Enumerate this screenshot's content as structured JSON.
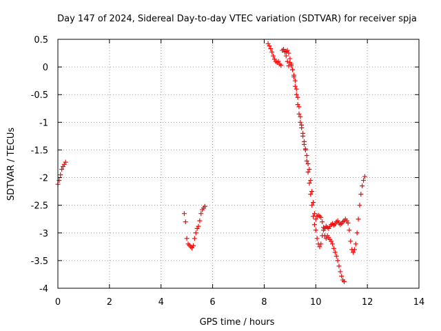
{
  "chart_data": {
    "type": "scatter",
    "title": "Day 147 of 2024, Sidereal Day-to-day VTEC variation (SDTVAR) for receiver spja",
    "xlabel": "GPS time / hours",
    "ylabel": "SDTVAR / TECUs",
    "xlim": [
      0,
      14
    ],
    "ylim": [
      -4,
      0.5
    ],
    "x_ticks": [
      0,
      2,
      4,
      6,
      8,
      10,
      12,
      14
    ],
    "x_tick_labels": [
      "0",
      "2",
      "4",
      "6",
      "8",
      "10",
      "12",
      "14"
    ],
    "y_ticks": [
      0.5,
      0,
      -0.5,
      -1,
      -1.5,
      -2,
      -2.5,
      -3,
      -3.5,
      -4
    ],
    "y_tick_labels": [
      "0.5",
      "0",
      "-0.5",
      "-1",
      "-1.5",
      "-2",
      "-2.5",
      "-3",
      "-3.5",
      "-4"
    ],
    "grid": true,
    "marker": "+",
    "marker_color": "#ff0000",
    "segments": [
      {
        "name": "segment-1",
        "points": [
          [
            0.0,
            -2.12
          ],
          [
            0.05,
            -2.05
          ],
          [
            0.1,
            -1.95
          ],
          [
            0.15,
            -1.85
          ],
          [
            0.2,
            -1.8
          ],
          [
            0.25,
            -1.76
          ],
          [
            0.3,
            -1.72
          ]
        ]
      },
      {
        "name": "segment-2",
        "points": [
          [
            4.9,
            -2.65
          ],
          [
            4.95,
            -2.8
          ],
          [
            5.0,
            -3.1
          ],
          [
            5.05,
            -3.2
          ],
          [
            5.1,
            -3.22
          ],
          [
            5.15,
            -3.25
          ],
          [
            5.2,
            -3.27
          ],
          [
            5.25,
            -3.23
          ],
          [
            5.3,
            -3.1
          ],
          [
            5.35,
            -3.0
          ],
          [
            5.4,
            -2.92
          ],
          [
            5.45,
            -2.88
          ],
          [
            5.5,
            -2.78
          ],
          [
            5.55,
            -2.65
          ],
          [
            5.6,
            -2.58
          ],
          [
            5.65,
            -2.55
          ],
          [
            5.7,
            -2.52
          ]
        ]
      },
      {
        "name": "segment-3",
        "points": [
          [
            8.15,
            0.42
          ],
          [
            8.2,
            0.38
          ],
          [
            8.25,
            0.33
          ],
          [
            8.3,
            0.27
          ],
          [
            8.35,
            0.2
          ],
          [
            8.4,
            0.14
          ],
          [
            8.45,
            0.1
          ],
          [
            8.5,
            0.08
          ],
          [
            8.55,
            0.1
          ],
          [
            8.6,
            0.05
          ],
          [
            8.65,
            0.03
          ],
          [
            8.7,
            0.3
          ],
          [
            8.75,
            0.32
          ],
          [
            8.8,
            0.27
          ],
          [
            8.85,
            0.2
          ],
          [
            8.9,
            0.1
          ],
          [
            8.95,
            0.02
          ],
          [
            9.0,
            0.08
          ],
          [
            9.05,
            0.02
          ],
          [
            9.1,
            -0.05
          ],
          [
            9.15,
            -0.15
          ],
          [
            9.2,
            -0.25
          ],
          [
            9.25,
            -0.4
          ],
          [
            9.3,
            -0.55
          ],
          [
            9.35,
            -0.72
          ],
          [
            9.4,
            -0.9
          ],
          [
            9.45,
            -1.05
          ],
          [
            9.5,
            -1.2
          ],
          [
            9.55,
            -1.35
          ],
          [
            9.6,
            -1.5
          ],
          [
            9.65,
            -1.7
          ],
          [
            9.7,
            -1.9
          ],
          [
            9.75,
            -2.1
          ],
          [
            9.8,
            -2.3
          ],
          [
            9.85,
            -2.5
          ],
          [
            9.9,
            -2.7
          ],
          [
            9.95,
            -2.85
          ],
          [
            10.0,
            -2.95
          ],
          [
            10.05,
            -3.1
          ],
          [
            10.1,
            -3.2
          ],
          [
            10.15,
            -3.25
          ],
          [
            10.2,
            -3.2
          ],
          [
            10.25,
            -3.05
          ],
          [
            10.3,
            -2.95
          ],
          [
            10.35,
            -2.92
          ],
          [
            10.4,
            -2.88
          ],
          [
            10.45,
            -2.9
          ],
          [
            10.5,
            -2.92
          ],
          [
            10.55,
            -2.88
          ],
          [
            10.6,
            -2.85
          ],
          [
            10.65,
            -2.83
          ],
          [
            10.7,
            -2.86
          ],
          [
            10.75,
            -2.84
          ],
          [
            10.8,
            -2.8
          ],
          [
            10.85,
            -2.78
          ],
          [
            10.9,
            -2.82
          ],
          [
            10.95,
            -2.85
          ],
          [
            11.0,
            -2.83
          ],
          [
            11.05,
            -2.8
          ],
          [
            11.1,
            -2.78
          ],
          [
            11.15,
            -2.75
          ],
          [
            11.2,
            -2.78
          ],
          [
            11.25,
            -2.82
          ],
          [
            11.3,
            -2.95
          ],
          [
            11.35,
            -3.15
          ],
          [
            11.4,
            -3.3
          ],
          [
            11.45,
            -3.35
          ],
          [
            11.5,
            -3.3
          ],
          [
            11.55,
            -3.2
          ],
          [
            11.6,
            -3.0
          ],
          [
            11.65,
            -2.75
          ],
          [
            11.7,
            -2.5
          ],
          [
            11.75,
            -2.3
          ],
          [
            11.8,
            -2.15
          ],
          [
            11.85,
            -2.05
          ],
          [
            11.9,
            -1.98
          ]
        ]
      },
      {
        "name": "segment-4",
        "points": [
          [
            8.85,
            0.28
          ],
          [
            8.9,
            0.3
          ],
          [
            8.95,
            0.25
          ],
          [
            9.0,
            0.15
          ],
          [
            9.05,
            0.05
          ],
          [
            9.1,
            -0.05
          ],
          [
            9.15,
            -0.18
          ],
          [
            9.2,
            -0.35
          ],
          [
            9.25,
            -0.5
          ],
          [
            9.3,
            -0.68
          ],
          [
            9.35,
            -0.85
          ],
          [
            9.4,
            -1.0
          ],
          [
            9.45,
            -1.1
          ],
          [
            9.5,
            -1.25
          ],
          [
            9.55,
            -1.4
          ],
          [
            9.6,
            -1.48
          ],
          [
            9.65,
            -1.6
          ],
          [
            9.7,
            -1.75
          ],
          [
            9.75,
            -1.85
          ],
          [
            9.8,
            -2.05
          ],
          [
            9.85,
            -2.25
          ],
          [
            9.9,
            -2.45
          ],
          [
            9.95,
            -2.65
          ],
          [
            10.0,
            -2.75
          ],
          [
            10.05,
            -2.7
          ],
          [
            10.1,
            -2.68
          ],
          [
            10.15,
            -2.7
          ],
          [
            10.2,
            -2.72
          ],
          [
            10.25,
            -2.8
          ],
          [
            10.3,
            -2.9
          ],
          [
            10.35,
            -3.05
          ],
          [
            10.4,
            -3.1
          ],
          [
            10.45,
            -3.05
          ],
          [
            10.5,
            -3.08
          ],
          [
            10.55,
            -3.12
          ],
          [
            10.6,
            -3.15
          ],
          [
            10.65,
            -3.2
          ],
          [
            10.7,
            -3.28
          ],
          [
            10.75,
            -3.35
          ],
          [
            10.8,
            -3.42
          ],
          [
            10.85,
            -3.5
          ],
          [
            10.9,
            -3.6
          ],
          [
            10.95,
            -3.7
          ],
          [
            11.0,
            -3.78
          ],
          [
            11.05,
            -3.85
          ],
          [
            11.1,
            -3.88
          ]
        ]
      }
    ]
  }
}
